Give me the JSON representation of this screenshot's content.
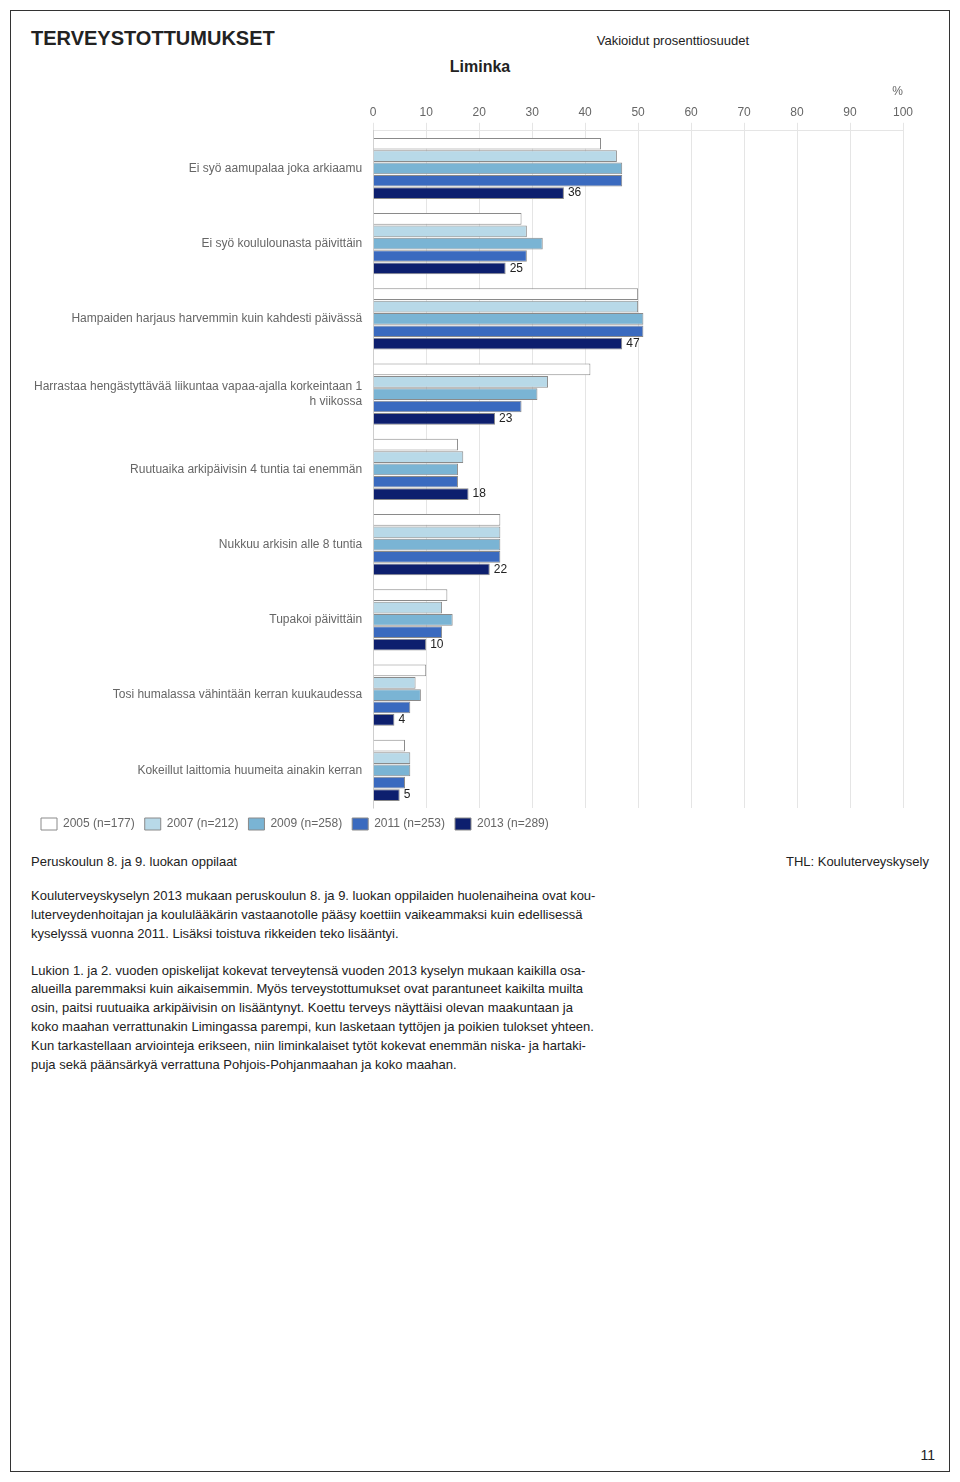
{
  "chart_data": {
    "type": "bar",
    "orientation": "horizontal",
    "title": "TERVEYSTOTTUMUKSET",
    "subtitle": "Liminka",
    "xlabel": "%",
    "annotations": [
      "Vakioidut prosenttiosuudet",
      "Peruskoulun 8. ja 9. luokan oppilaat",
      "THL: Kouluterveyskysely",
      "Kouluterveyskyselyn 2013 mukaan peruskoulun 8. ja 9. luokan oppilaiden huolenaiheina ovat kou-\nluterveydenhoitajan ja koululääkärin vastaanotolle pääsy koettiin vaikeammaksi kuin edellisessä\nkyselyssä vuonna 2011. Lisäksi toistuva rikkeiden teko lisääntyi.",
      "Lukion 1. ja 2. vuoden opiskelijat kokevat terveytensä vuoden 2013 kyselyn mukaan kaikilla osa-\nalueilla paremmaksi kuin aikaisemmin. Myös terveystottumukset ovat parantuneet kaikilta muilta\nosin, paitsi ruutuaika arkipäivisin on lisääntynyt. Koettu terveys näyttäisi olevan maakuntaan ja\nkoko maahan verrattunakin Limingassa parempi, kun lasketaan tyttöjen ja poikien tulokset yhteen.\nKun tarkastellaan arviointeja erikseen, niin liminkalaiset tytöt kokevat enemmän niska- ja hartaki-\npuja sekä päänsärkyä verrattuna Pohjois-Pohjanmaahan ja koko maahan.",
      "11"
    ],
    "categories": [
      "Ei syö aamupalaa joka arkiaamu",
      "Ei syö koululounasta päivittäin",
      "Hampaiden harjaus harvemmin kuin kahdesti päivässä",
      "Harrastaa hengästyttävää liikuntaa vapaa-ajalla korkeintaan 1\nh viikossa",
      "Ruutuaika arkipäivisin 4 tuntia tai enemmän",
      "Nukkuu arkisin alle 8 tuntia",
      "Tupakoi päivittäin",
      "Tosi humalassa vähintään kerran kuukaudessa",
      "Kokeillut laittomia huumeita ainakin kerran"
    ],
    "series": [
      {
        "name": "2005 (n=177)",
        "color": "#ffffff",
        "values": [
          43,
          28,
          50,
          41,
          16,
          24,
          14,
          10,
          6
        ]
      },
      {
        "name": "2007 (n=212)",
        "color": "#b8d9e8",
        "values": [
          46,
          29,
          50,
          33,
          17,
          24,
          13,
          8,
          7
        ]
      },
      {
        "name": "2009 (n=258)",
        "color": "#7ab4d4",
        "values": [
          47,
          32,
          51,
          31,
          16,
          24,
          15,
          9,
          7
        ]
      },
      {
        "name": "2011 (n=253)",
        "color": "#3a6abf",
        "values": [
          47,
          29,
          51,
          28,
          16,
          24,
          13,
          7,
          6
        ]
      },
      {
        "name": "2013 (n=289)",
        "color": "#0d1f6e",
        "values": [
          36,
          25,
          47,
          23,
          18,
          22,
          10,
          4,
          5
        ],
        "data_labels": true
      }
    ],
    "xlim": [
      0,
      100
    ],
    "xticks": [
      0,
      10,
      20,
      30,
      40,
      50,
      60,
      70,
      80,
      90,
      100
    ],
    "grid": true,
    "legend": "bottom"
  }
}
